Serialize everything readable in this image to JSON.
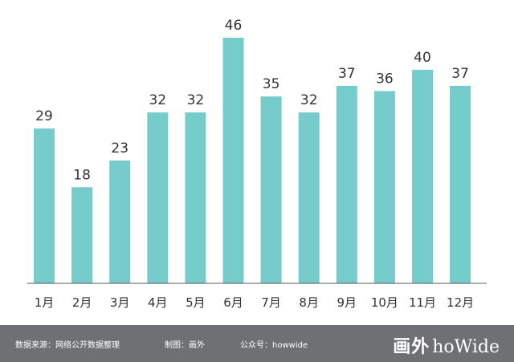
{
  "chart_data": {
    "type": "bar",
    "categories": [
      "1月",
      "2月",
      "3月",
      "4月",
      "5月",
      "6月",
      "7月",
      "8月",
      "9月",
      "10月",
      "11月",
      "12月"
    ],
    "values": [
      29,
      18,
      23,
      32,
      32,
      46,
      35,
      32,
      37,
      36,
      40,
      37
    ],
    "ylim": [
      0,
      46
    ],
    "grid": false,
    "colors": {
      "bar": "#76cbcb",
      "axis": "#5a5a5a",
      "label": "#333333"
    }
  },
  "footer": {
    "source": "数据来源：网络公开数据整理",
    "maker": "制图：画外",
    "public_account": "公众号：howwide",
    "logo_cn": "画外",
    "logo_en": "hoWide",
    "background": "#6f7073"
  }
}
